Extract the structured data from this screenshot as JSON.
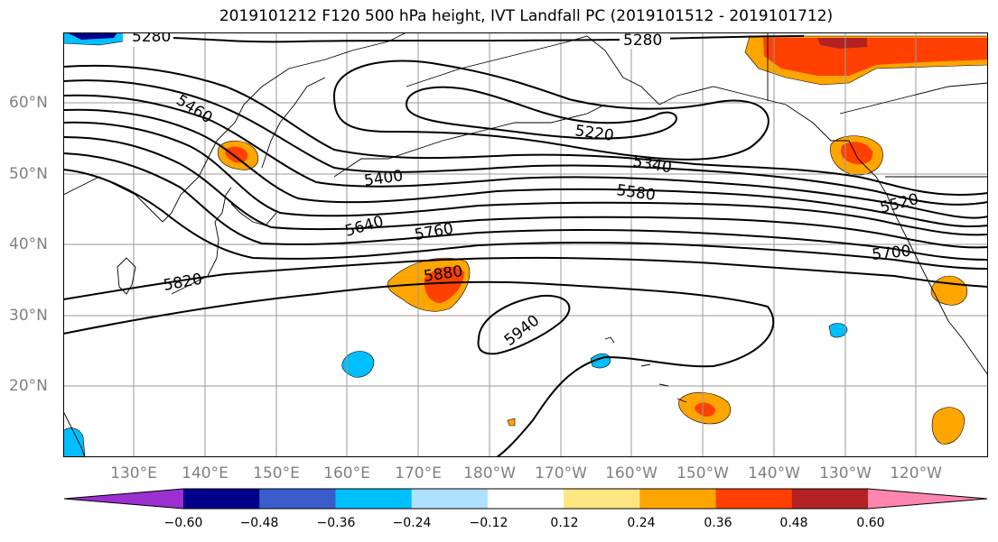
{
  "title": "2019101212 F120 500 hPa height, IVT Landfall PC (2019101512 - 2019101712)",
  "map": {
    "variable": "500 hPa height",
    "shaded_field": "IVT Landfall PC",
    "lat_labels": [
      "60°N",
      "50°N",
      "40°N",
      "30°N",
      "20°N"
    ],
    "lon_labels": [
      "130°E",
      "140°E",
      "150°E",
      "160°E",
      "170°E",
      "180°W",
      "170°W",
      "160°W",
      "150°W",
      "140°W",
      "130°W",
      "120°W"
    ],
    "contour_labels": [
      "5280",
      "5280",
      "5460",
      "5220",
      "5340",
      "5400",
      "5580",
      "5520",
      "5640",
      "5760",
      "5700",
      "5820",
      "5880",
      "5940"
    ]
  },
  "colorbar": {
    "ticks": [
      "−0.60",
      "−0.48",
      "−0.36",
      "−0.24",
      "−0.12",
      "0.12",
      "0.24",
      "0.36",
      "0.48",
      "0.60"
    ],
    "colors": [
      "#9b30d0",
      "#00008b",
      "#3a5ccc",
      "#00bfff",
      "#b0e0ff",
      "#ffffff",
      "#ffe680",
      "#ffa500",
      "#ff4000",
      "#b22222",
      "#ff85b0"
    ]
  }
}
